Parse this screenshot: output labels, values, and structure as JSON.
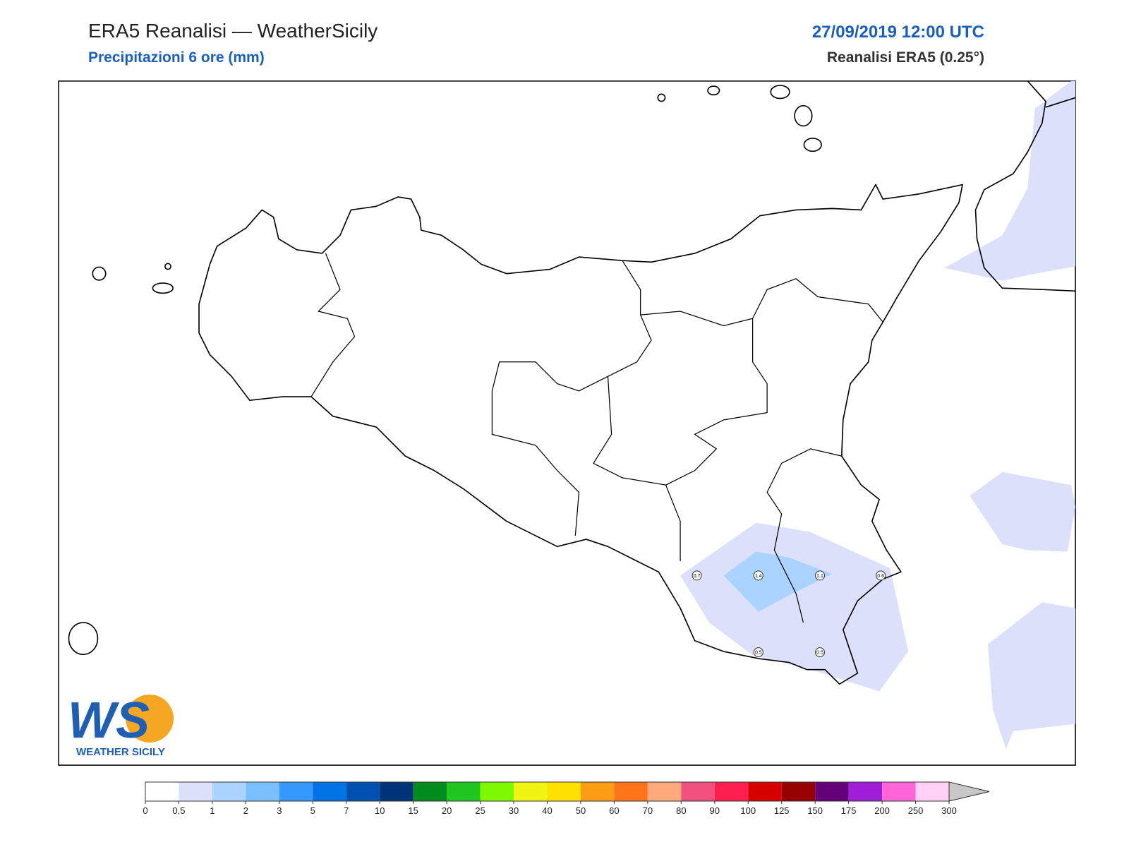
{
  "header": {
    "title": "ERA5 Reanalisi — WeatherSicily",
    "subtitle": "Precipitazioni 6 ore (mm)",
    "date": "27/09/2019 12:00 UTC",
    "source": "Reanalisi ERA5 (0.25°)"
  },
  "map": {
    "point_values": [
      0.7,
      1.4,
      1.1,
      0.6,
      0.5,
      0.5
    ]
  },
  "colorbar": {
    "ticks": [
      0,
      0.5,
      1,
      2,
      3,
      5,
      7,
      10,
      15,
      20,
      25,
      30,
      40,
      50,
      60,
      70,
      80,
      90,
      100,
      125,
      150,
      175,
      200,
      250,
      300
    ],
    "colors": [
      "#ffffff",
      "#dde0fb",
      "#aad4ff",
      "#78c0ff",
      "#3399ff",
      "#0073e6",
      "#0050b0",
      "#003377",
      "#008c1e",
      "#1ec81e",
      "#7dfa00",
      "#f0f514",
      "#ffe100",
      "#ff9b14",
      "#ff7319",
      "#ffaa7d",
      "#f0507d",
      "#ff1e50",
      "#d70000",
      "#960000",
      "#640078",
      "#a01ed7",
      "#ff64d7",
      "#ffd2f5"
    ]
  },
  "logo": {
    "letters": "WS",
    "text": "WEATHER SICILY"
  }
}
